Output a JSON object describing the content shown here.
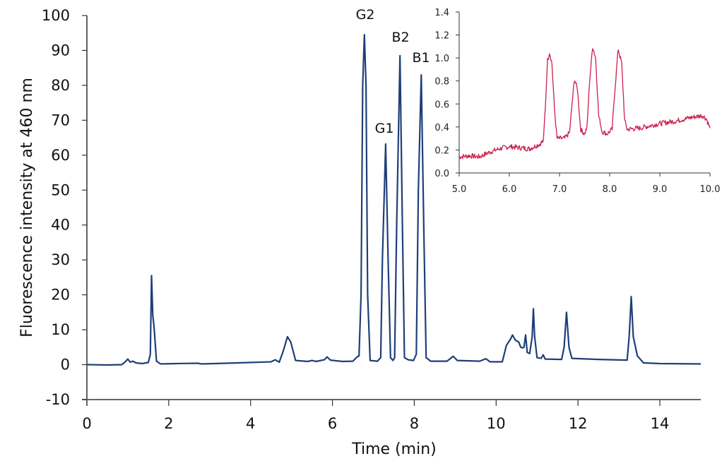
{
  "chart_data": [
    {
      "type": "line",
      "title": "",
      "xlabel": "Time (min)",
      "ylabel": "Fluorescence intensity at 460 nm",
      "xlim": [
        0,
        15.2
      ],
      "ylim": [
        -10,
        100
      ],
      "x_ticks": [
        0,
        2,
        4,
        6,
        8,
        10,
        12,
        14
      ],
      "y_ticks": [
        -10,
        0,
        10,
        20,
        30,
        40,
        50,
        60,
        70,
        80,
        90,
        100
      ],
      "grid": false,
      "legend": null,
      "color": "#1f3f7a",
      "annotations": [
        {
          "label": "G2",
          "x": 6.78,
          "y": 94.5
        },
        {
          "label": "G1",
          "x": 7.3,
          "y": 63.2
        },
        {
          "label": "B2",
          "x": 7.65,
          "y": 88.5
        },
        {
          "label": "B1",
          "x": 8.17,
          "y": 83.0
        }
      ],
      "series": [
        {
          "name": "chromatogram",
          "points": [
            [
              0.0,
              0.0
            ],
            [
              0.5,
              -0.1
            ],
            [
              0.85,
              0.0
            ],
            [
              0.92,
              0.6
            ],
            [
              1.0,
              1.6
            ],
            [
              1.06,
              0.7
            ],
            [
              1.12,
              1.0
            ],
            [
              1.2,
              0.5
            ],
            [
              1.35,
              0.3
            ],
            [
              1.5,
              0.6
            ],
            [
              1.55,
              3
            ],
            [
              1.58,
              25.5
            ],
            [
              1.61,
              14
            ],
            [
              1.64,
              11
            ],
            [
              1.7,
              1.0
            ],
            [
              1.8,
              0.2
            ],
            [
              2.2,
              0.3
            ],
            [
              2.7,
              0.4
            ],
            [
              2.8,
              0.2
            ],
            [
              3.7,
              0.5
            ],
            [
              4.5,
              0.8
            ],
            [
              4.6,
              1.4
            ],
            [
              4.7,
              0.7
            ],
            [
              4.8,
              4.0
            ],
            [
              4.9,
              8.0
            ],
            [
              4.98,
              6.5
            ],
            [
              5.1,
              1.2
            ],
            [
              5.4,
              0.9
            ],
            [
              5.5,
              1.2
            ],
            [
              5.6,
              0.9
            ],
            [
              5.8,
              1.4
            ],
            [
              5.87,
              2.2
            ],
            [
              5.95,
              1.3
            ],
            [
              6.1,
              1.1
            ],
            [
              6.25,
              0.9
            ],
            [
              6.5,
              1.0
            ],
            [
              6.6,
              2.2
            ],
            [
              6.65,
              2.5
            ],
            [
              6.7,
              20
            ],
            [
              6.74,
              80
            ],
            [
              6.78,
              94.5
            ],
            [
              6.82,
              80
            ],
            [
              6.86,
              20
            ],
            [
              6.92,
              1.2
            ],
            [
              7.1,
              1.0
            ],
            [
              7.18,
              2
            ],
            [
              7.22,
              30
            ],
            [
              7.3,
              63.2
            ],
            [
              7.36,
              30
            ],
            [
              7.42,
              2
            ],
            [
              7.48,
              1.2
            ],
            [
              7.52,
              2
            ],
            [
              7.57,
              40
            ],
            [
              7.65,
              88.5
            ],
            [
              7.71,
              40
            ],
            [
              7.76,
              2.0
            ],
            [
              7.85,
              1.4
            ],
            [
              7.98,
              1.2
            ],
            [
              8.05,
              3
            ],
            [
              8.1,
              50
            ],
            [
              8.17,
              83.0
            ],
            [
              8.23,
              40
            ],
            [
              8.29,
              2
            ],
            [
              8.4,
              1.0
            ],
            [
              8.6,
              1.0
            ],
            [
              8.8,
              1.0
            ],
            [
              8.95,
              2.4
            ],
            [
              9.05,
              1.2
            ],
            [
              9.6,
              1.0
            ],
            [
              9.75,
              1.7
            ],
            [
              9.85,
              0.8
            ],
            [
              10.15,
              0.8
            ],
            [
              10.25,
              5.5
            ],
            [
              10.35,
              7.3
            ],
            [
              10.4,
              8.5
            ],
            [
              10.47,
              7.0
            ],
            [
              10.55,
              6.5
            ],
            [
              10.6,
              5.0
            ],
            [
              10.65,
              4.8
            ],
            [
              10.68,
              5.0
            ],
            [
              10.72,
              8.5
            ],
            [
              10.76,
              3.5
            ],
            [
              10.82,
              3.2
            ],
            [
              10.88,
              8
            ],
            [
              10.91,
              16
            ],
            [
              10.94,
              8
            ],
            [
              11.0,
              2.0
            ],
            [
              11.1,
              1.8
            ],
            [
              11.15,
              2.8
            ],
            [
              11.2,
              1.6
            ],
            [
              11.6,
              1.5
            ],
            [
              11.66,
              5
            ],
            [
              11.72,
              15
            ],
            [
              11.78,
              5
            ],
            [
              11.85,
              1.8
            ],
            [
              12.5,
              1.5
            ],
            [
              13.2,
              1.3
            ],
            [
              13.25,
              8
            ],
            [
              13.3,
              19.5
            ],
            [
              13.35,
              8
            ],
            [
              13.45,
              2.5
            ],
            [
              13.6,
              0.5
            ],
            [
              14.0,
              0.3
            ],
            [
              15.0,
              0.2
            ]
          ]
        }
      ]
    },
    {
      "type": "line",
      "title": "",
      "xlabel": "",
      "ylabel": "",
      "xlim": [
        5.0,
        10.0
      ],
      "ylim": [
        0.0,
        1.4
      ],
      "x_ticks": [
        "5.0",
        "6.0",
        "7.0",
        "8.0",
        "9.0",
        "10.0"
      ],
      "y_ticks": [
        "0.0",
        "0.2",
        "0.4",
        "0.6",
        "0.8",
        "1.0",
        "1.2",
        "1.4"
      ],
      "grid": false,
      "legend": null,
      "color": "#cc1f4e",
      "series": [
        {
          "name": "inset-zoom",
          "points": [
            [
              5.0,
              0.14
            ],
            [
              5.2,
              0.15
            ],
            [
              5.4,
              0.14
            ],
            [
              5.6,
              0.18
            ],
            [
              5.8,
              0.21
            ],
            [
              6.0,
              0.23
            ],
            [
              6.2,
              0.22
            ],
            [
              6.4,
              0.21
            ],
            [
              6.6,
              0.25
            ],
            [
              6.68,
              0.28
            ],
            [
              6.72,
              0.6
            ],
            [
              6.76,
              0.98
            ],
            [
              6.8,
              1.05
            ],
            [
              6.85,
              0.95
            ],
            [
              6.9,
              0.55
            ],
            [
              6.95,
              0.3
            ],
            [
              7.1,
              0.3
            ],
            [
              7.2,
              0.35
            ],
            [
              7.25,
              0.6
            ],
            [
              7.3,
              0.82
            ],
            [
              7.36,
              0.72
            ],
            [
              7.42,
              0.38
            ],
            [
              7.5,
              0.34
            ],
            [
              7.55,
              0.4
            ],
            [
              7.6,
              0.8
            ],
            [
              7.66,
              1.1
            ],
            [
              7.72,
              1.0
            ],
            [
              7.78,
              0.5
            ],
            [
              7.85,
              0.36
            ],
            [
              7.95,
              0.34
            ],
            [
              8.05,
              0.38
            ],
            [
              8.1,
              0.7
            ],
            [
              8.17,
              1.08
            ],
            [
              8.24,
              0.95
            ],
            [
              8.3,
              0.45
            ],
            [
              8.35,
              0.38
            ],
            [
              8.6,
              0.39
            ],
            [
              8.8,
              0.41
            ],
            [
              9.0,
              0.43
            ],
            [
              9.3,
              0.45
            ],
            [
              9.6,
              0.48
            ],
            [
              9.85,
              0.5
            ],
            [
              9.93,
              0.47
            ],
            [
              10.0,
              0.39
            ]
          ]
        }
      ]
    }
  ],
  "main": {
    "x_axis_title": "Time (min)",
    "y_axis_title": "Fluorescence intensity at 460 nm",
    "x_tick_labels": [
      "0",
      "2",
      "4",
      "6",
      "8",
      "10",
      "12",
      "14"
    ],
    "y_tick_labels": [
      "-10",
      "0",
      "10",
      "20",
      "30",
      "40",
      "50",
      "60",
      "70",
      "80",
      "90",
      "100"
    ],
    "peaks": [
      "G2",
      "G1",
      "B2",
      "B1"
    ]
  },
  "inset": {
    "x_tick_labels": [
      "5.0",
      "6.0",
      "7.0",
      "8.0",
      "9.0",
      "10.0"
    ],
    "y_tick_labels": [
      "0.0",
      "0.2",
      "0.4",
      "0.6",
      "0.8",
      "1.0",
      "1.2",
      "1.4"
    ]
  }
}
